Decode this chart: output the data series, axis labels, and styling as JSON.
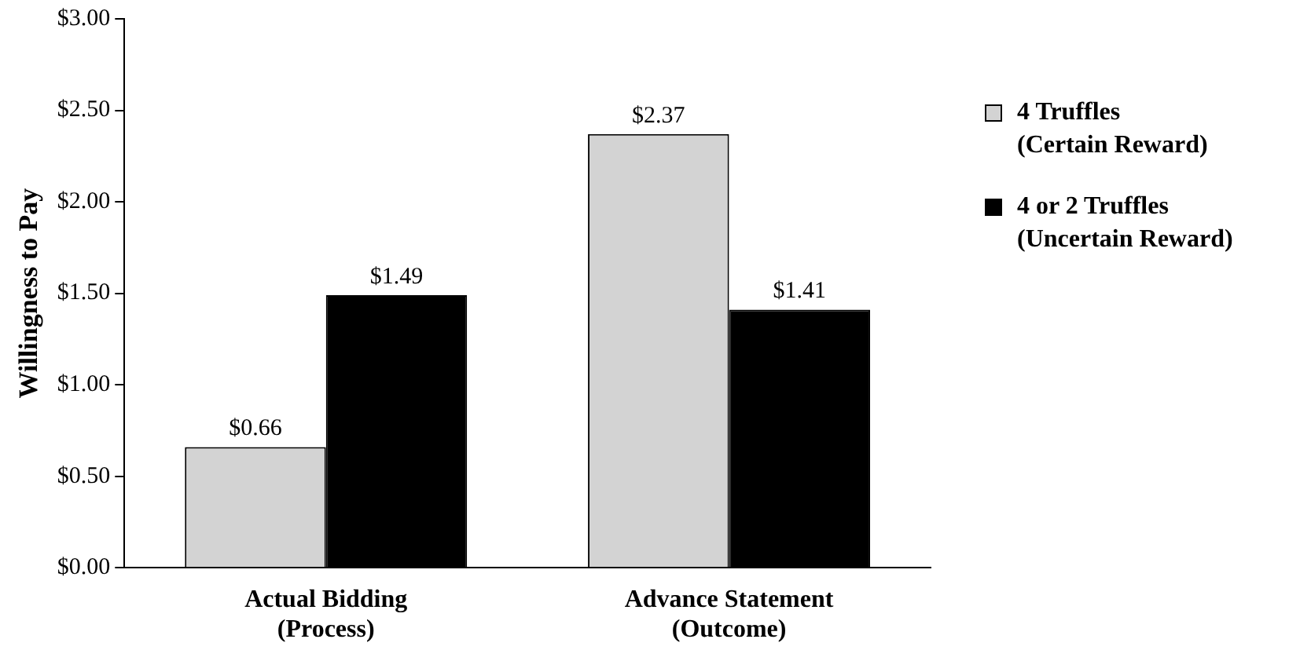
{
  "chart_data": {
    "type": "bar",
    "ylabel": "Willingness to Pay",
    "categories": [
      "Actual Bidding\n(Process)",
      "Advance Statement\n(Outcome)"
    ],
    "series": [
      {
        "name": "4 Truffles\n(Certain Reward)",
        "color": "#d3d3d3",
        "values": [
          0.66,
          2.37
        ],
        "value_labels": [
          "$0.66",
          "$2.37"
        ]
      },
      {
        "name": "4 or 2 Truffles\n(Uncertain Reward)",
        "color": "#000000",
        "values": [
          1.49,
          1.41
        ],
        "value_labels": [
          "$1.49",
          "$1.41"
        ]
      }
    ],
    "ylim": [
      0,
      3
    ],
    "yticks": [
      {
        "value": 0,
        "label": "$0.00"
      },
      {
        "value": 0.5,
        "label": "$0.50"
      },
      {
        "value": 1,
        "label": "$1.00"
      },
      {
        "value": 1.5,
        "label": "$1.50"
      },
      {
        "value": 2,
        "label": "$2.00"
      },
      {
        "value": 2.5,
        "label": "$2.50"
      },
      {
        "value": 3,
        "label": "$3.00"
      }
    ],
    "grid": false,
    "legend": "right"
  }
}
